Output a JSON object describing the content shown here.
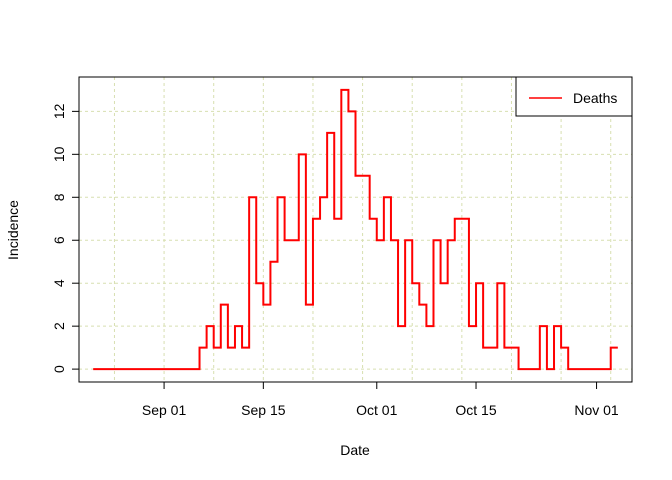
{
  "chart_data": {
    "type": "line",
    "step": true,
    "xlabel": "Date",
    "ylabel": "Incidence",
    "x_range": [
      "2018-08-20",
      "2018-11-06"
    ],
    "y_range": [
      -0.6,
      13.6
    ],
    "x_ticks": [
      {
        "date": "2018-09-01",
        "label": "Sep 01"
      },
      {
        "date": "2018-09-15",
        "label": "Sep 15"
      },
      {
        "date": "2018-10-01",
        "label": "Oct 01"
      },
      {
        "date": "2018-10-15",
        "label": "Oct 15"
      },
      {
        "date": "2018-11-01",
        "label": "Nov 01"
      }
    ],
    "y_ticks": [
      0,
      2,
      4,
      6,
      8,
      10,
      12
    ],
    "grid": true,
    "grid_color": "#d7dfb0",
    "legend": {
      "position": "top-right",
      "entries": [
        {
          "label": "Deaths",
          "color": "#ff0000"
        }
      ]
    },
    "start_date": "2018-08-22",
    "series": [
      {
        "name": "Deaths",
        "color": "#ff0000",
        "values": [
          0,
          0,
          0,
          0,
          0,
          0,
          0,
          0,
          0,
          0,
          0,
          0,
          0,
          0,
          0,
          1,
          2,
          1,
          3,
          1,
          2,
          1,
          8,
          4,
          3,
          5,
          8,
          6,
          6,
          10,
          3,
          7,
          8,
          11,
          7,
          13,
          12,
          9,
          9,
          7,
          6,
          8,
          6,
          2,
          6,
          4,
          3,
          2,
          6,
          4,
          6,
          7,
          7,
          2,
          4,
          1,
          1,
          4,
          1,
          1,
          0,
          0,
          0,
          2,
          0,
          2,
          1,
          0,
          0,
          0,
          0,
          0,
          0,
          1
        ]
      }
    ]
  }
}
